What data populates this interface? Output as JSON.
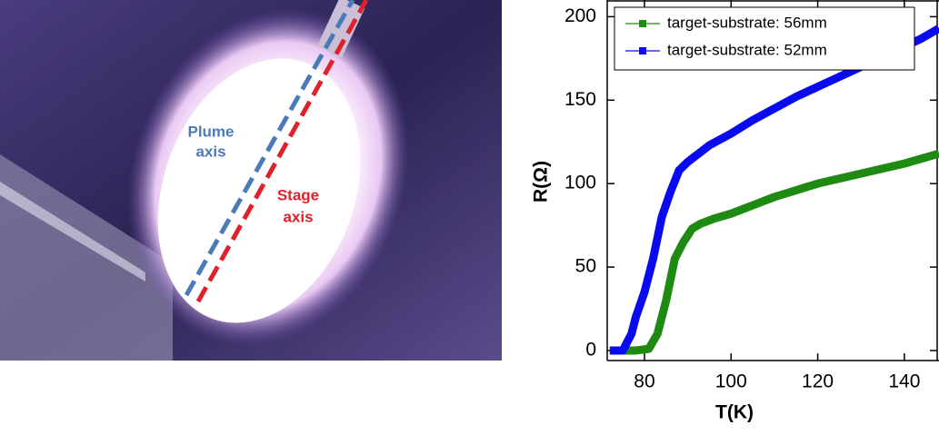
{
  "photo": {
    "plume_label": [
      "Plume",
      "axis"
    ],
    "stage_label": [
      "Stage",
      "axis"
    ]
  },
  "chart_data": {
    "type": "line",
    "x_label": "T(K)",
    "y_label": "R(Ω)",
    "xlim": [
      71.4,
      148
    ],
    "ylim": [
      -6,
      210
    ],
    "xticks": [
      80,
      100,
      120,
      140
    ],
    "yticks": [
      0,
      50,
      100,
      150,
      200
    ],
    "legend": "upper left",
    "series": [
      {
        "name": "target-substrate: 56mm",
        "color": "#1f8a12",
        "x": [
          72,
          78,
          81,
          83,
          85,
          87,
          89,
          91,
          93,
          96,
          100,
          105,
          110,
          115,
          120,
          125,
          130,
          135,
          140,
          144,
          148
        ],
        "values": [
          0,
          0,
          1,
          10,
          30,
          55,
          65,
          73,
          76,
          79,
          82,
          87,
          92,
          96,
          100,
          103,
          106,
          109,
          112,
          115,
          118
        ]
      },
      {
        "name": "target-substrate: 52mm",
        "color": "#0a0af0",
        "x": [
          72,
          75,
          77,
          78,
          80,
          82,
          84,
          86,
          88,
          90,
          95,
          100,
          105,
          110,
          115,
          120,
          125,
          130,
          135,
          140,
          144,
          148
        ],
        "values": [
          0,
          0,
          10,
          20,
          35,
          55,
          80,
          95,
          108,
          113,
          123,
          130,
          138,
          145,
          152,
          158,
          164,
          170,
          176,
          182,
          187,
          193
        ]
      }
    ]
  }
}
